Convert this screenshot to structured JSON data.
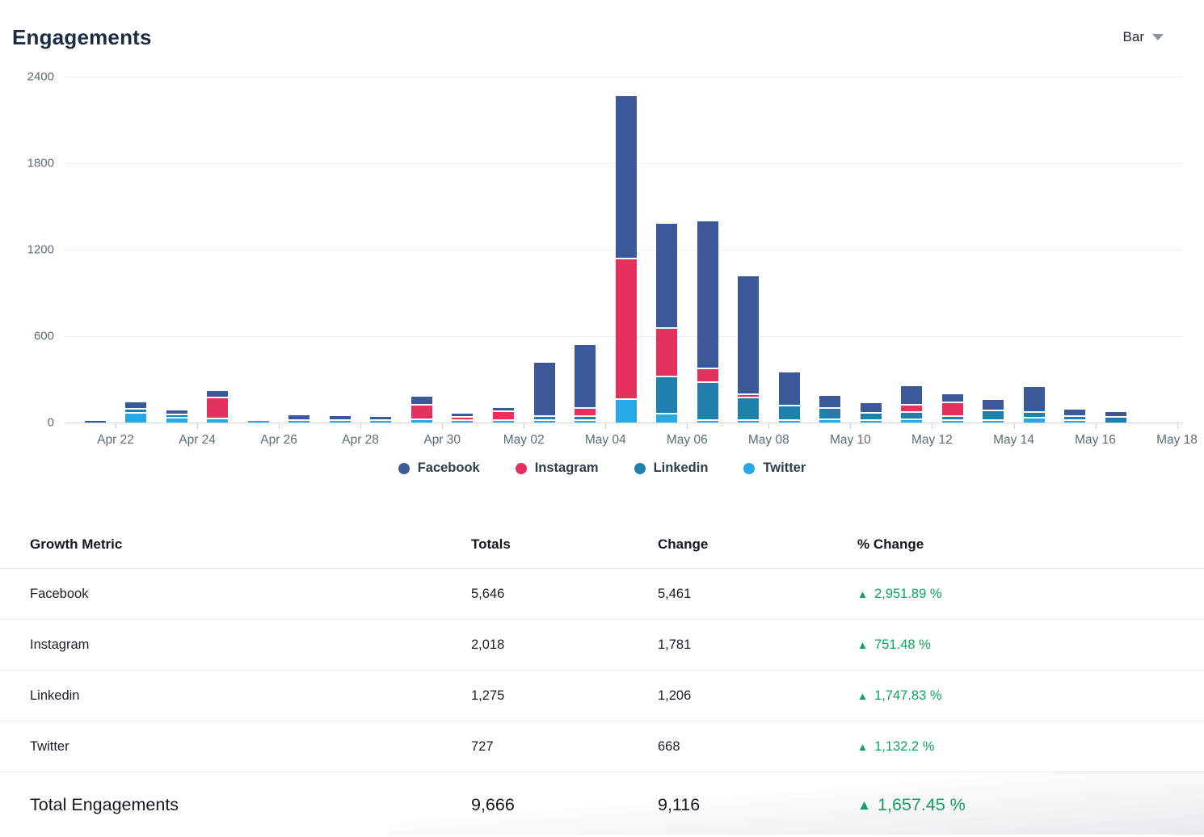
{
  "header": {
    "title": "Engagements",
    "chart_type_label": "Bar"
  },
  "chart_data": {
    "type": "bar",
    "stacked": true,
    "title": "Engagements",
    "ylim": [
      0,
      2400
    ],
    "y_ticks": [
      0,
      600,
      1200,
      1800,
      2400
    ],
    "grid": true,
    "legend_position": "bottom",
    "x_tick_labels": [
      "Apr 22",
      "Apr 24",
      "Apr 26",
      "Apr 28",
      "Apr 30",
      "May 02",
      "May 04",
      "May 06",
      "May 08",
      "May 10",
      "May 12",
      "May 14",
      "May 16",
      "May 18"
    ],
    "categories": [
      "Apr 21",
      "Apr 22",
      "Apr 23",
      "Apr 24",
      "Apr 25",
      "Apr 26",
      "Apr 27",
      "Apr 28",
      "Apr 29",
      "Apr 30",
      "May 01",
      "May 02",
      "May 03",
      "May 04",
      "May 05",
      "May 06",
      "May 07",
      "May 08",
      "May 09",
      "May 10",
      "May 11",
      "May 12",
      "May 13",
      "May 14",
      "May 15",
      "May 16",
      "May 17",
      "May 18"
    ],
    "stack_order": [
      "Twitter",
      "Linkedin",
      "Instagram",
      "Facebook"
    ],
    "series": [
      {
        "name": "Facebook",
        "color": "#3b5998",
        "values": [
          18,
          45,
          25,
          45,
          0,
          35,
          28,
          20,
          55,
          25,
          25,
          375,
          435,
          1125,
          722,
          1020,
          815,
          230,
          85,
          70,
          125,
          57,
          75,
          175,
          45,
          35,
          0,
          0
        ]
      },
      {
        "name": "Instagram",
        "color": "#e5315d",
        "values": [
          0,
          0,
          0,
          140,
          0,
          0,
          0,
          0,
          95,
          17,
          55,
          0,
          55,
          970,
          327,
          93,
          20,
          0,
          0,
          0,
          50,
          85,
          0,
          0,
          0,
          0,
          0,
          0
        ]
      },
      {
        "name": "Linkedin",
        "color": "#1e81ad",
        "values": [
          0,
          18,
          15,
          0,
          0,
          0,
          0,
          0,
          0,
          0,
          0,
          20,
          20,
          0,
          257,
          257,
          150,
          95,
          75,
          45,
          45,
          25,
          60,
          30,
          25,
          40,
          0,
          0
        ]
      },
      {
        "name": "Twitter",
        "color": "#29a8e8",
        "values": [
          0,
          70,
          35,
          30,
          5,
          5,
          18,
          5,
          25,
          11,
          10,
          8,
          15,
          165,
          60,
          15,
          5,
          10,
          20,
          15,
          20,
          8,
          10,
          35,
          10,
          0,
          0,
          0
        ]
      }
    ]
  },
  "table": {
    "headers": [
      "Growth Metric",
      "Totals",
      "Change",
      "% Change"
    ],
    "up_arrow": "▲",
    "positive_color": "#0ea35f",
    "rows": [
      {
        "metric": "Facebook",
        "totals": "5,646",
        "change": "5,461",
        "pct_change": "2,951.89 %"
      },
      {
        "metric": "Instagram",
        "totals": "2,018",
        "change": "1,781",
        "pct_change": "751.48 %"
      },
      {
        "metric": "Linkedin",
        "totals": "1,275",
        "change": "1,206",
        "pct_change": "1,747.83 %"
      },
      {
        "metric": "Twitter",
        "totals": "727",
        "change": "668",
        "pct_change": "1,132.2 %"
      }
    ],
    "total_row": {
      "label": "Total Engagements",
      "totals": "9,666",
      "change": "9,116",
      "pct_change": "1,657.45 %"
    }
  }
}
